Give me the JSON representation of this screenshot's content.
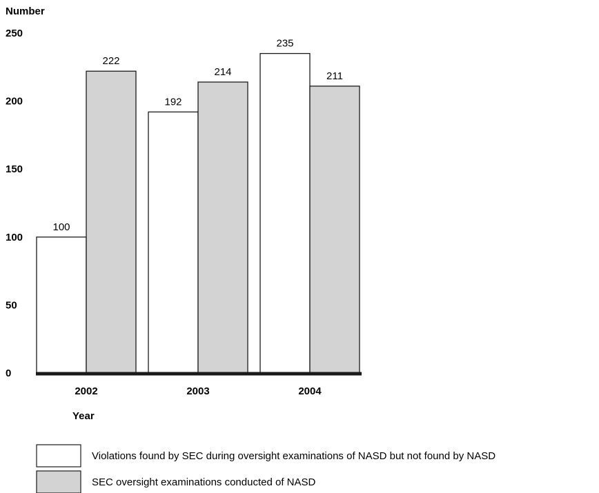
{
  "chart_data": {
    "type": "bar",
    "ylabel": "Number",
    "xlabel": "Year",
    "ylim": [
      0,
      250
    ],
    "yticks": [
      "0",
      "50",
      "100",
      "150",
      "200",
      "250"
    ],
    "categories": [
      "2002",
      "2003",
      "2004"
    ],
    "series": [
      {
        "name": "Violations found by SEC during oversight examinations of NASD but not found by NASD",
        "values": [
          100,
          192,
          235
        ],
        "color": "#ffffff"
      },
      {
        "name": "SEC oversight examinations conducted of NASD",
        "values": [
          222,
          214,
          211
        ],
        "color": "#d3d3d3"
      }
    ],
    "grid": false,
    "legend_position": "bottom-left"
  }
}
